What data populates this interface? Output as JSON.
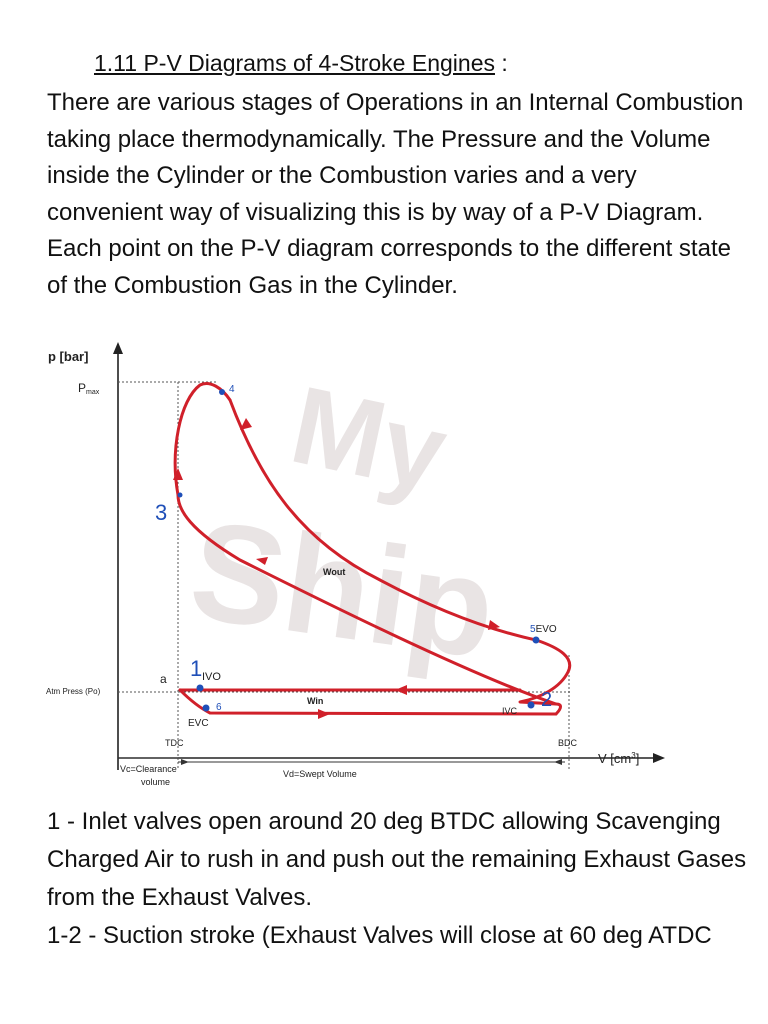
{
  "heading": {
    "title": "1.11 P-V Diagrams of 4-Stroke Engines",
    "suffix": " :"
  },
  "intro": "There are various stages of Operations in an Internal Combustion taking place thermodynamically. The Pressure and the Volume inside the Cylinder or the Combustion varies and a very convenient way of visualizing this is by way of a P-V Diagram. Each point on the P-V diagram corresponds to the different state of the Combustion Gas in the Cylinder.",
  "diagram": {
    "y_axis_label": "p [bar]",
    "pmax_label": "P",
    "pmax_sub": "max",
    "x_axis_label": "V [cm",
    "x_axis_sup": "3",
    "x_axis_close": "]",
    "atm_label": "Atm Press (Po)",
    "tdc": "TDC",
    "bdc": "BDC",
    "clearance": [
      "Vc=Clearance",
      "volume"
    ],
    "swept": "Vd=Swept Volume",
    "wout": "Wout",
    "win": "Win",
    "point_a": "a",
    "p1": "1",
    "ivo": "IVO",
    "p2": "2",
    "ivc": "IVC",
    "p3": "3",
    "p4": "4",
    "p5": "5",
    "evo": "EVO",
    "p6": "6",
    "evc": "EVC",
    "watermark": [
      "My",
      "Ship"
    ],
    "colors": {
      "cycle": "#d0202a",
      "marker": "#1f4fb8",
      "axis": "#222222"
    }
  },
  "body": [
    "1 - Inlet valves open around 20 deg BTDC allowing Scavenging Charged Air to rush in and push out the remaining Exhaust Gases from the Exhaust Valves.",
    "1-2 - Suction stroke (Exhaust Valves will close at 60 deg ATDC"
  ]
}
